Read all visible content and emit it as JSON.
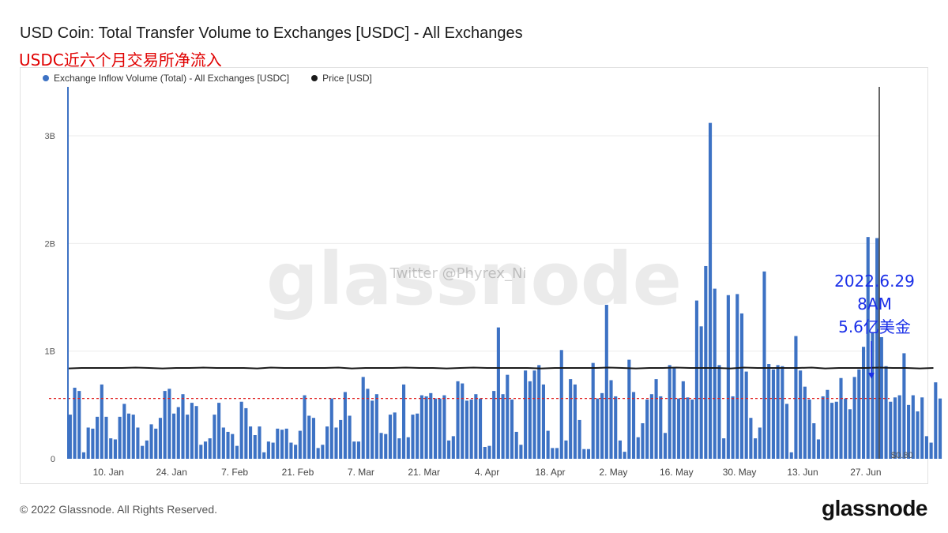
{
  "header": {
    "title": "USD Coin: Total Transfer Volume to Exchanges [USDC] - All Exchanges",
    "subtitle_cn": "USDC近六个月交易所净流入"
  },
  "watermark": {
    "logo": "glassnode",
    "handle": "Twitter @Phyrex_Ni"
  },
  "annotation": {
    "line1": "2022.6.29",
    "line2": "8AM",
    "line3": "5.6亿美金"
  },
  "footer": {
    "copyright": "© 2022 Glassnode. All Rights Reserved.",
    "logo": "glassnode"
  },
  "colors": {
    "bar": "#3d72c4",
    "price": "#1a1a1a",
    "reference": "#e02020",
    "annotation": "#1a2fe8"
  },
  "chart_data": {
    "type": "bar",
    "legend_placement": "top-left",
    "legend": [
      {
        "label": "Exchange Inflow Volume (Total) - All Exchanges [USDC]",
        "color": "#3d72c4"
      },
      {
        "label": "Price [USD]",
        "color": "#1a1a1a"
      }
    ],
    "y_left": {
      "ticks": [
        0,
        1000000000,
        2000000000,
        3000000000
      ],
      "tick_labels": [
        "0",
        "1B",
        "2B",
        "3B"
      ],
      "range": [
        0,
        3300000000
      ]
    },
    "y_right": {
      "tick_labels": [
        "$0.80"
      ]
    },
    "x_axis": {
      "start": "2022-01-01",
      "end": "2022-06-30",
      "tick_dates": [
        "2022-01-10",
        "2022-01-24",
        "2022-02-07",
        "2022-02-21",
        "2022-03-07",
        "2022-03-21",
        "2022-04-04",
        "2022-04-18",
        "2022-05-02",
        "2022-05-16",
        "2022-05-30",
        "2022-06-13",
        "2022-06-27"
      ],
      "tick_labels": [
        "10. Jan",
        "24. Jan",
        "7. Feb",
        "21. Feb",
        "7. Mar",
        "21. Mar",
        "4. Apr",
        "18. Apr",
        "2. May",
        "16. May",
        "30. May",
        "13. Jun",
        "27. Jun"
      ]
    },
    "grid": true,
    "reference_line_usdc": 560000000,
    "price_series_usd": {
      "name": "Price [USD]",
      "value": 1.0
    },
    "series": [
      {
        "name": "Exchange Inflow Volume (Total) - All Exchanges [USDC]",
        "start_date": "2022-01-01",
        "values_musdc": [
          410,
          660,
          630,
          60,
          290,
          280,
          390,
          690,
          390,
          190,
          180,
          390,
          510,
          420,
          410,
          290,
          120,
          170,
          320,
          280,
          380,
          630,
          650,
          420,
          480,
          600,
          410,
          520,
          490,
          130,
          160,
          190,
          410,
          520,
          290,
          250,
          230,
          120,
          530,
          470,
          300,
          220,
          300,
          60,
          160,
          150,
          280,
          270,
          280,
          150,
          130,
          260,
          590,
          400,
          380,
          100,
          130,
          300,
          560,
          290,
          360,
          620,
          400,
          160,
          160,
          760,
          650,
          540,
          600,
          240,
          230,
          410,
          430,
          190,
          690,
          200,
          410,
          420,
          590,
          580,
          610,
          560,
          560,
          590,
          170,
          210,
          720,
          700,
          540,
          550,
          600,
          560,
          110,
          120,
          630,
          1220,
          600,
          780,
          550,
          250,
          130,
          820,
          720,
          820,
          870,
          690,
          260,
          100,
          100,
          1010,
          170,
          740,
          690,
          360,
          90,
          90,
          890,
          560,
          610,
          1430,
          730,
          580,
          170,
          65,
          920,
          620,
          200,
          330,
          550,
          600,
          740,
          580,
          240,
          870,
          850,
          560,
          720,
          570,
          550,
          1470,
          1230,
          1790,
          3120,
          1580,
          870,
          190,
          1520,
          580,
          1530,
          1350,
          810,
          380,
          190,
          290,
          1740,
          880,
          830,
          870,
          860,
          510,
          60,
          1140,
          820,
          670,
          550,
          330,
          180,
          580,
          640,
          520,
          530,
          750,
          560,
          460,
          760,
          830,
          1040,
          2060,
          1170,
          2050,
          1130,
          860,
          530,
          570,
          590,
          980,
          500,
          590,
          440,
          570,
          210,
          150,
          710,
          560
        ]
      }
    ]
  }
}
